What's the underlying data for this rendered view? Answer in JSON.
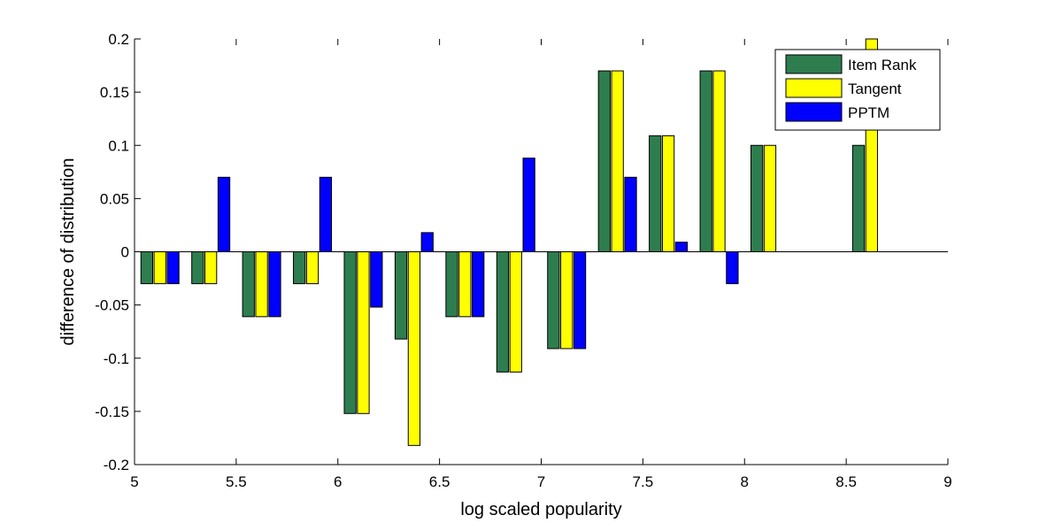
{
  "chart_data": {
    "type": "bar",
    "xlabel": "log scaled popularity",
    "ylabel": "difference of distribution",
    "xlim": [
      5,
      9
    ],
    "ylim": [
      -0.2,
      0.2
    ],
    "xticks": [
      "5",
      "5.5",
      "6",
      "6.5",
      "7",
      "7.5",
      "8",
      "8.5",
      "9"
    ],
    "yticks": [
      "-0.2",
      "-0.15",
      "-0.1",
      "-0.05",
      "0",
      "0.05",
      "0.1",
      "0.15",
      "0.2"
    ],
    "x": [
      5.125,
      5.375,
      5.625,
      5.875,
      6.125,
      6.375,
      6.625,
      6.875,
      7.125,
      7.375,
      7.625,
      7.875,
      8.125,
      8.375,
      8.625
    ],
    "series": [
      {
        "name": "Item Rank",
        "color": "#2e7d4f",
        "values": [
          -0.03,
          -0.03,
          -0.061,
          -0.03,
          -0.152,
          -0.082,
          -0.061,
          -0.113,
          -0.091,
          0.17,
          0.109,
          0.17,
          0.1,
          0,
          0.1
        ]
      },
      {
        "name": "Tangent",
        "color": "#ffff00",
        "values": [
          -0.03,
          -0.03,
          -0.061,
          -0.03,
          -0.152,
          -0.182,
          -0.061,
          -0.113,
          -0.091,
          0.17,
          0.109,
          0.17,
          0.1,
          0,
          0.2
        ]
      },
      {
        "name": "PPTM",
        "color": "#0000ff",
        "values": [
          -0.03,
          0.07,
          -0.061,
          0.07,
          -0.052,
          0.018,
          -0.061,
          0.088,
          -0.091,
          0.07,
          0.009,
          -0.03,
          0,
          0,
          0
        ]
      }
    ],
    "legend_position": "top-right",
    "grid": false
  }
}
